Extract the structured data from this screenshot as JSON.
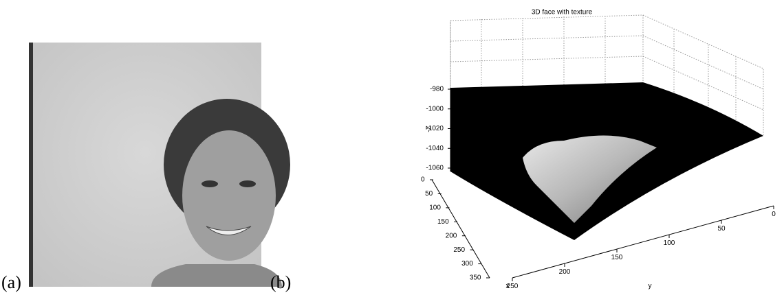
{
  "panels": [
    {
      "label": "(a)"
    },
    {
      "label": "(b)",
      "title": "3D face with texture",
      "z_label": "-Z",
      "x_label": "x",
      "y_label": "y",
      "zticks": [
        -980,
        -1000,
        -1020,
        -1040,
        -1060
      ],
      "xticks": [
        0,
        50,
        100,
        150,
        200,
        250,
        300,
        350
      ],
      "yticks": [
        0,
        50,
        100,
        150,
        200,
        250
      ]
    }
  ]
}
